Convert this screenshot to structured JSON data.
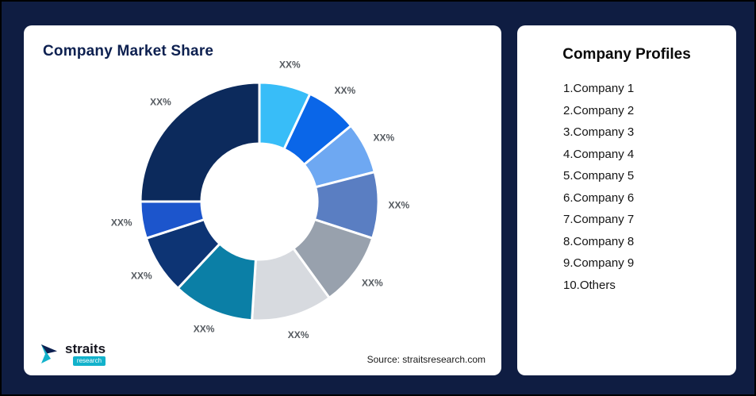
{
  "page": {
    "background_color": "#0f1d42"
  },
  "market_share_card": {
    "title": "Company Market Share",
    "source_note": "Source: straitsresearch.com",
    "logo": {
      "name": "straits",
      "subname": "research",
      "icon_color_dark": "#0d2050",
      "icon_color_cyan": "#12b2cb"
    }
  },
  "profiles_card": {
    "title": "Company Profiles",
    "items": [
      "1.Company 1",
      "2.Company 2",
      "3.Company 3",
      "4.Company 4",
      "5.Company 5",
      "6.Company 6",
      "7.Company 7",
      "8.Company 8",
      "9.Company 9",
      "10.Others"
    ]
  },
  "chart_data": {
    "type": "pie",
    "variant": "donut",
    "title": "Company Market Share",
    "legend_position": "none",
    "start_angle_deg": -90,
    "direction": "clockwise",
    "inner_radius_ratio": 0.48,
    "segments": [
      {
        "name": "Company 1",
        "label": "XX%",
        "value": 7,
        "color": "#38bdf8"
      },
      {
        "name": "Company 2",
        "label": "XX%",
        "value": 7,
        "color": "#0a66e8"
      },
      {
        "name": "Company 3",
        "label": "XX%",
        "value": 7,
        "color": "#6ea8f2"
      },
      {
        "name": "Company 4",
        "label": "XX%",
        "value": 9,
        "color": "#5a7ec2"
      },
      {
        "name": "Company 5",
        "label": "XX%",
        "value": 10,
        "color": "#98a1ad"
      },
      {
        "name": "Company 6",
        "label": "XX%",
        "value": 11,
        "color": "#d7dadf"
      },
      {
        "name": "Company 7",
        "label": "XX%",
        "value": 11,
        "color": "#0b7fa6"
      },
      {
        "name": "Company 8",
        "label": "XX%",
        "value": 8,
        "color": "#0d3474"
      },
      {
        "name": "Company 9",
        "label": "XX%",
        "value": 5,
        "color": "#1c55cc"
      },
      {
        "name": "Others",
        "label": "XX%",
        "value": 25,
        "color": "#0c2a5c"
      }
    ]
  }
}
